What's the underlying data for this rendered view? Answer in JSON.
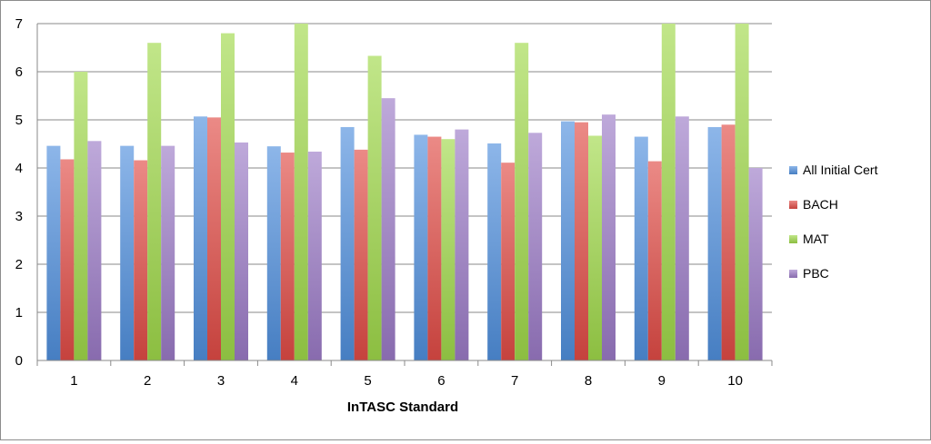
{
  "chart_data": {
    "type": "bar",
    "title": "",
    "xlabel": "InTASC Standard",
    "ylabel": "",
    "ylim": [
      0,
      7
    ],
    "yticks": [
      0,
      1,
      2,
      3,
      4,
      5,
      6,
      7
    ],
    "grid": true,
    "legend_position": "right",
    "categories": [
      "1",
      "2",
      "3",
      "4",
      "5",
      "6",
      "7",
      "8",
      "9",
      "10"
    ],
    "series": [
      {
        "name": "All Initial Cert",
        "color": "#4f8fdd",
        "values": [
          4.46,
          4.46,
          5.07,
          4.45,
          4.85,
          4.69,
          4.51,
          4.97,
          4.65,
          4.85
        ]
      },
      {
        "name": "BACH",
        "color": "#e04b45",
        "values": [
          4.18,
          4.16,
          5.05,
          4.32,
          4.38,
          4.65,
          4.11,
          4.95,
          4.14,
          4.9
        ]
      },
      {
        "name": "MAT",
        "color": "#9fd84a",
        "values": [
          6.0,
          6.6,
          6.8,
          7.0,
          6.33,
          4.6,
          6.6,
          4.67,
          7.0,
          7.0
        ]
      },
      {
        "name": "PBC",
        "color": "#9b7ac6",
        "values": [
          4.56,
          4.46,
          4.53,
          4.34,
          5.45,
          4.8,
          4.73,
          5.11,
          5.07,
          4.0
        ]
      }
    ]
  }
}
